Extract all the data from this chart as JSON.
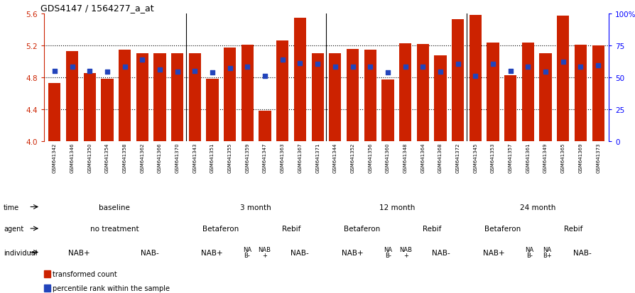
{
  "title": "GDS4147 / 1564277_a_at",
  "samples": [
    "GSM641342",
    "GSM641346",
    "GSM641350",
    "GSM641354",
    "GSM641358",
    "GSM641362",
    "GSM641366",
    "GSM641370",
    "GSM641343",
    "GSM641351",
    "GSM641355",
    "GSM641359",
    "GSM641347",
    "GSM641363",
    "GSM641367",
    "GSM641371",
    "GSM641344",
    "GSM641352",
    "GSM641356",
    "GSM641360",
    "GSM641348",
    "GSM641364",
    "GSM641368",
    "GSM641372",
    "GSM641345",
    "GSM641353",
    "GSM641357",
    "GSM641361",
    "GSM641349",
    "GSM641365",
    "GSM641369",
    "GSM641373"
  ],
  "bar_values": [
    4.73,
    5.13,
    4.85,
    4.78,
    5.15,
    5.1,
    5.1,
    5.1,
    5.1,
    4.78,
    5.17,
    5.21,
    4.38,
    5.26,
    5.55,
    5.1,
    5.1,
    5.16,
    5.15,
    4.77,
    5.23,
    5.22,
    5.08,
    5.53,
    5.58,
    5.24,
    4.83,
    5.24,
    5.1,
    5.57,
    5.21,
    5.2
  ],
  "dot_values": [
    4.88,
    4.93,
    4.88,
    4.87,
    4.93,
    5.02,
    4.9,
    4.87,
    4.88,
    4.86,
    4.92,
    4.93,
    4.82,
    5.02,
    4.98,
    4.97,
    4.93,
    4.93,
    4.93,
    4.86,
    4.93,
    4.93,
    4.87,
    4.97,
    4.82,
    4.97,
    4.88,
    4.93,
    4.87,
    5.0,
    4.93,
    4.95
  ],
  "ylim": [
    4.0,
    5.6
  ],
  "yticks_left": [
    4.0,
    4.4,
    4.8,
    5.2,
    5.6
  ],
  "yticks_right": [
    0,
    25,
    50,
    75,
    100
  ],
  "bar_color": "#cc2200",
  "dot_color": "#2244bb",
  "time_groups": [
    {
      "label": "baseline",
      "start": 0,
      "end": 8,
      "color": "#b8e0b8"
    },
    {
      "label": "3 month",
      "start": 8,
      "end": 16,
      "color": "#88cc88"
    },
    {
      "label": "12 month",
      "start": 16,
      "end": 24,
      "color": "#55aa55"
    },
    {
      "label": "24 month",
      "start": 24,
      "end": 32,
      "color": "#33aa33"
    }
  ],
  "agent_groups": [
    {
      "label": "no treatment",
      "start": 0,
      "end": 8,
      "color": "#ccbbee"
    },
    {
      "label": "Betaferon",
      "start": 8,
      "end": 12,
      "color": "#9977cc"
    },
    {
      "label": "Rebif",
      "start": 12,
      "end": 16,
      "color": "#ccbbee"
    },
    {
      "label": "Betaferon",
      "start": 16,
      "end": 20,
      "color": "#9977cc"
    },
    {
      "label": "Rebif",
      "start": 20,
      "end": 24,
      "color": "#ccbbee"
    },
    {
      "label": "Betaferon",
      "start": 24,
      "end": 28,
      "color": "#9977cc"
    },
    {
      "label": "Rebif",
      "start": 28,
      "end": 32,
      "color": "#ccbbee"
    }
  ],
  "individual_groups": [
    {
      "label": "NAB+",
      "start": 0,
      "end": 4,
      "color": "#ee9999"
    },
    {
      "label": "NAB-",
      "start": 4,
      "end": 8,
      "color": "#cc6666"
    },
    {
      "label": "NAB+",
      "start": 8,
      "end": 11,
      "color": "#ee9999"
    },
    {
      "label": "NA\nB-",
      "start": 11,
      "end": 12,
      "color": "#cc6666"
    },
    {
      "label": "NAB\n+",
      "start": 12,
      "end": 13,
      "color": "#ee9999"
    },
    {
      "label": "NAB-",
      "start": 13,
      "end": 16,
      "color": "#cc6666"
    },
    {
      "label": "NAB+",
      "start": 16,
      "end": 19,
      "color": "#ee9999"
    },
    {
      "label": "NA\nB-",
      "start": 19,
      "end": 20,
      "color": "#cc6666"
    },
    {
      "label": "NAB\n+",
      "start": 20,
      "end": 21,
      "color": "#ee9999"
    },
    {
      "label": "NAB-",
      "start": 21,
      "end": 24,
      "color": "#cc6666"
    },
    {
      "label": "NAB+",
      "start": 24,
      "end": 27,
      "color": "#ee9999"
    },
    {
      "label": "NA\nB-",
      "start": 27,
      "end": 28,
      "color": "#cc6666"
    },
    {
      "label": "NA\nB+",
      "start": 28,
      "end": 29,
      "color": "#ee9999"
    },
    {
      "label": "NAB-",
      "start": 29,
      "end": 32,
      "color": "#cc6666"
    }
  ],
  "legend_items": [
    {
      "label": "transformed count",
      "color": "#cc2200"
    },
    {
      "label": "percentile rank within the sample",
      "color": "#2244bb"
    }
  ],
  "fig_width": 8.95,
  "fig_height": 4.14,
  "dpi": 100
}
